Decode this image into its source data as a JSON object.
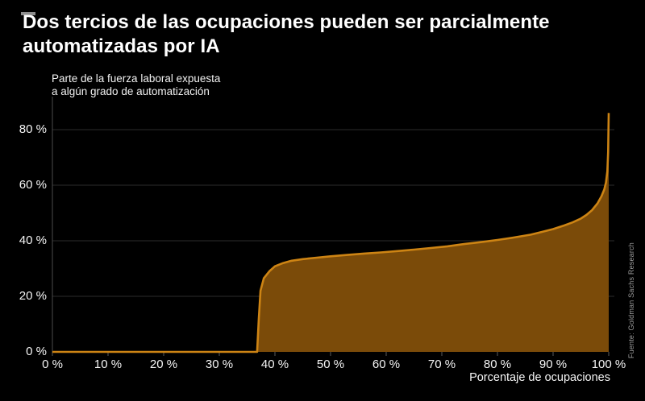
{
  "page": {
    "background": "#000000",
    "logo_dash_color": "#8c8c8c"
  },
  "chart_data": {
    "type": "area",
    "title": "Dos tercios de las ocupaciones pueden ser parcialmente automatizadas por IA",
    "subtitle": "Parte de la fuerza laboral expuesta\na algún grado de automatización",
    "xlabel": "Porcentaje de ocupaciones",
    "source": "Fuente: Goldman Sachs Research",
    "xlim": [
      0,
      100
    ],
    "ylim": [
      0,
      90
    ],
    "grid": "horizontal",
    "legend": "none",
    "x_tick_values": [
      0,
      10,
      20,
      30,
      40,
      50,
      60,
      70,
      80,
      90,
      100
    ],
    "x_tick_labels": [
      "0 %",
      "10 %",
      "20 %",
      "30 %",
      "40 %",
      "50 %",
      "60 %",
      "70 %",
      "80 %",
      "90 %",
      "100 %"
    ],
    "y_tick_values": [
      0,
      20,
      40,
      60,
      80
    ],
    "y_tick_labels": [
      "0 %",
      "20 %",
      "40 %",
      "60 %",
      "80 %"
    ],
    "points": [
      [
        0,
        0
      ],
      [
        10,
        0
      ],
      [
        20,
        0
      ],
      [
        30,
        0
      ],
      [
        36.8,
        0
      ],
      [
        37.1,
        12
      ],
      [
        37.4,
        22
      ],
      [
        38,
        26.5
      ],
      [
        39,
        29
      ],
      [
        40,
        30.8
      ],
      [
        41.5,
        32
      ],
      [
        43,
        32.8
      ],
      [
        45,
        33.4
      ],
      [
        47.5,
        33.9
      ],
      [
        50,
        34.4
      ],
      [
        53,
        34.9
      ],
      [
        56,
        35.4
      ],
      [
        59,
        35.8
      ],
      [
        62,
        36.3
      ],
      [
        65,
        36.8
      ],
      [
        68,
        37.4
      ],
      [
        71,
        38
      ],
      [
        74,
        38.8
      ],
      [
        77,
        39.5
      ],
      [
        80,
        40.3
      ],
      [
        83,
        41.2
      ],
      [
        86,
        42.2
      ],
      [
        88,
        43.2
      ],
      [
        90,
        44.2
      ],
      [
        92,
        45.5
      ],
      [
        93.5,
        46.6
      ],
      [
        95,
        48
      ],
      [
        96,
        49.3
      ],
      [
        97,
        51
      ],
      [
        98,
        53.5
      ],
      [
        98.7,
        56
      ],
      [
        99.2,
        58.5
      ],
      [
        99.5,
        61
      ],
      [
        99.75,
        65
      ],
      [
        99.9,
        72
      ],
      [
        100,
        86
      ]
    ],
    "colors": {
      "fill": "#7b4b09",
      "line": "#cd8414",
      "grid": "#2b2b2b",
      "axis": "#4d4d4d",
      "tick": "#5a5a5a",
      "text": "#f5f5f5",
      "muted": "#9b9b9b"
    }
  }
}
